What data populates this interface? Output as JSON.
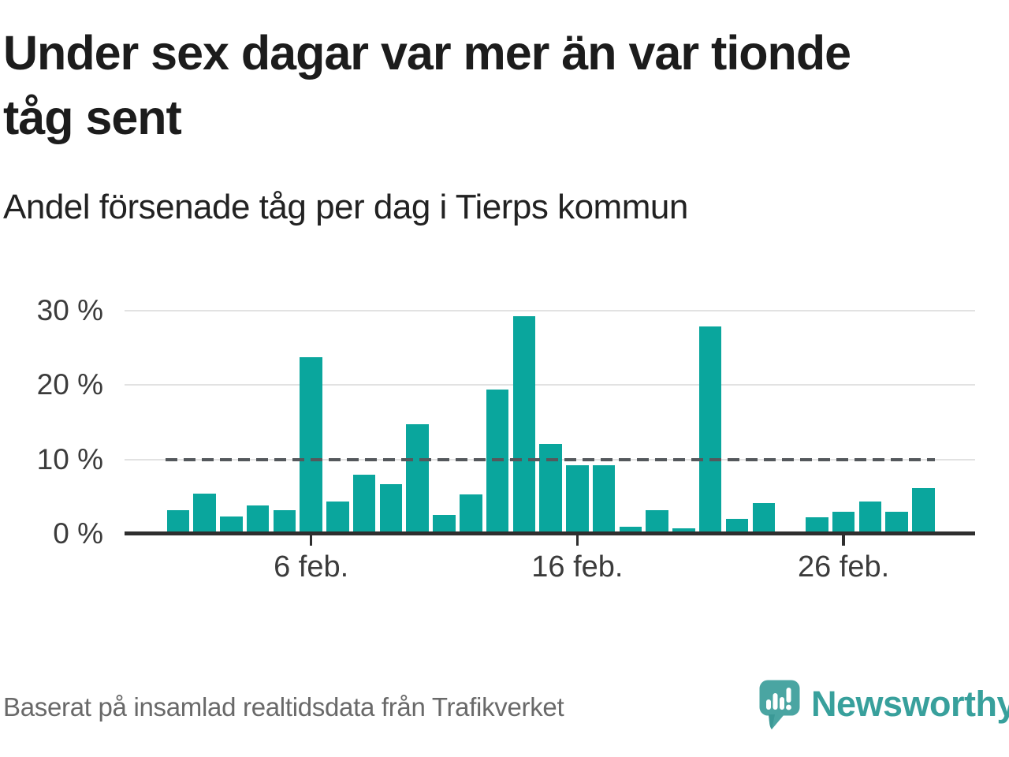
{
  "header": {
    "title": "Under sex dagar var mer än var tionde tåg sent",
    "subtitle": "Andel försenade tåg per dag i Tierps kommun"
  },
  "chart_data": {
    "type": "bar",
    "title": "Andel försenade tåg per dag i Tierps kommun",
    "unit": "%",
    "categories": [
      "1 feb.",
      "2 feb.",
      "3 feb.",
      "4 feb.",
      "5 feb.",
      "6 feb.",
      "7 feb.",
      "8 feb.",
      "9 feb.",
      "10 feb.",
      "11 feb.",
      "12 feb.",
      "13 feb.",
      "14 feb.",
      "15 feb.",
      "16 feb.",
      "17 feb.",
      "18 feb.",
      "19 feb.",
      "20 feb.",
      "21 feb.",
      "22 feb.",
      "23 feb.",
      "24 feb.",
      "25 feb.",
      "26 feb.",
      "27 feb.",
      "28 feb.",
      "29 feb."
    ],
    "values": [
      3.3,
      5.5,
      2.4,
      3.9,
      3.3,
      23.8,
      4.4,
      8.1,
      6.8,
      14.8,
      2.6,
      5.4,
      19.5,
      29.3,
      12.2,
      9.3,
      9.3,
      1.1,
      3.3,
      0.9,
      27.9,
      2.1,
      4.2,
      null,
      2.3,
      3.1,
      4.4,
      3.1,
      6.2
    ],
    "missing_days": [
      24
    ],
    "ylim": [
      0,
      30
    ],
    "yticks": [
      0,
      10,
      20,
      30
    ],
    "ytick_labels": [
      "0 %",
      "10 %",
      "20 %",
      "30 %"
    ],
    "xticks": [
      {
        "day": 6,
        "label": "6 feb."
      },
      {
        "day": 16,
        "label": "16 feb."
      },
      {
        "day": 26,
        "label": "26 feb."
      }
    ],
    "threshold": {
      "value": 10,
      "style": "dashed"
    },
    "grid": "horizontal",
    "legend": "none",
    "bar_color": "#0aa69d"
  },
  "footer": {
    "source": "Baserat på insamlad realtidsdata från Trafikverket",
    "brand": "Newsworthy"
  },
  "colors": {
    "bar": "#0aa69d",
    "gridline": "#e2e2e2",
    "threshold": "#54585c",
    "axis": "#2e2e2e",
    "title_text": "#1c1c1c",
    "tick_text": "#3b3b3b",
    "source_text": "#696969",
    "brand_teal": "#38a09c",
    "logo_bubble": "#4aa5a2",
    "logo_tail_shade": "#2f8f8d"
  }
}
